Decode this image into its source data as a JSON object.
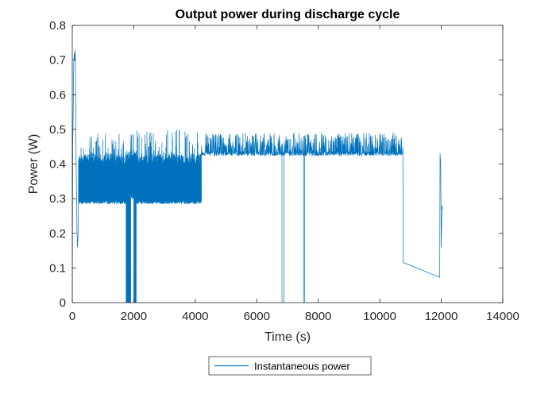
{
  "chart_data": {
    "type": "line",
    "title": "Output power during discharge cycle",
    "xlabel": "Time (s)",
    "ylabel": "Power (W)",
    "xlim": [
      0,
      14000
    ],
    "ylim": [
      0,
      0.8
    ],
    "xticks": [
      0,
      2000,
      4000,
      6000,
      8000,
      10000,
      12000,
      14000
    ],
    "yticks": [
      0,
      0.1,
      0.2,
      0.3,
      0.4,
      0.5,
      0.6,
      0.7,
      0.8
    ],
    "grid": false,
    "legend_position": "bottom-outside",
    "series_color": "#0072BD",
    "series": [
      {
        "name": "Instantaneous power",
        "segments": [
          {
            "kind": "startup",
            "points": [
              [
                0,
                0.0
              ],
              [
                15,
                0.45
              ],
              [
                30,
                0.55
              ],
              [
                45,
                0.68
              ],
              [
                60,
                0.72
              ],
              [
                80,
                0.7
              ],
              [
                95,
                0.73
              ],
              [
                110,
                0.6
              ],
              [
                125,
                0.4
              ],
              [
                140,
                0.3
              ],
              [
                155,
                0.2
              ],
              [
                170,
                0.16
              ],
              [
                185,
                0.19
              ],
              [
                200,
                0.29
              ]
            ]
          },
          {
            "kind": "dense",
            "x": [
              200,
              1750
            ],
            "low": 0.285,
            "high": 0.43,
            "spikes": 0.49
          },
          {
            "kind": "dropout",
            "x": [
              1750,
              1900
            ],
            "low": 0.0,
            "high": 0.44
          },
          {
            "kind": "dense",
            "x": [
              1900,
              2000
            ],
            "low": 0.3,
            "high": 0.43,
            "spikes": 0.49
          },
          {
            "kind": "dropout",
            "x": [
              2000,
              2080
            ],
            "low": 0.0,
            "high": 0.44
          },
          {
            "kind": "dense",
            "x": [
              2080,
              4200
            ],
            "low": 0.285,
            "high": 0.43,
            "spikes": 0.5
          },
          {
            "kind": "noisy",
            "x": [
              4200,
              10750
            ],
            "base": 0.43,
            "spikes": 0.49
          },
          {
            "kind": "drop",
            "x": 6820,
            "to": 0.0
          },
          {
            "kind": "drop",
            "x": 6880,
            "to": 0.0
          },
          {
            "kind": "drop",
            "x": 7520,
            "to": 0.0
          },
          {
            "kind": "drop",
            "x": 7560,
            "to": 0.0
          },
          {
            "kind": "tail",
            "points": [
              [
                10750,
                0.45
              ],
              [
                10760,
                0.116
              ],
              [
                11950,
                0.073
              ],
              [
                11960,
                0.43
              ],
              [
                11980,
                0.4
              ],
              [
                12000,
                0.16
              ],
              [
                12020,
                0.28
              ],
              [
                12040,
                0.27
              ]
            ]
          }
        ]
      }
    ]
  }
}
